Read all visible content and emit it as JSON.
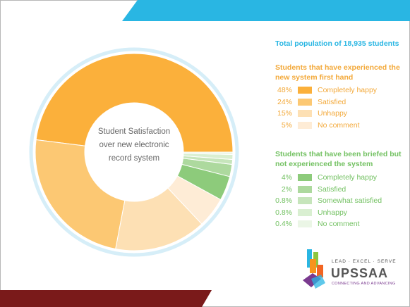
{
  "chart_data": {
    "type": "pie",
    "title": "Student Satisfaction over new electronic record system",
    "center_label_lines": [
      "Student Satisfaction",
      "over new electronic",
      "record system"
    ],
    "total_label": "Total population of 18,935 students",
    "groups": [
      {
        "title": "Students that have experienced the new system first hand",
        "color": "#f3a93a",
        "slices": [
          {
            "label": "Completely happy",
            "pct_text": "48%",
            "value": 48,
            "color": "#fbb03b"
          },
          {
            "label": "Satisfied",
            "pct_text": "24%",
            "value": 24,
            "color": "#fcc873"
          },
          {
            "label": "Unhappy",
            "pct_text": "15%",
            "value": 15,
            "color": "#fde0b4"
          },
          {
            "label": "No comment",
            "pct_text": "5%",
            "value": 5,
            "color": "#feecd6"
          }
        ]
      },
      {
        "title": "Students that have been briefed but not experienced the system",
        "color": "#73c162",
        "slices": [
          {
            "label": "Completely happy",
            "pct_text": "4%",
            "value": 4,
            "color": "#8dcb7b"
          },
          {
            "label": "Satisfied",
            "pct_text": "2%",
            "value": 2,
            "color": "#add99e"
          },
          {
            "label": "Somewhat satisfied",
            "pct_text": "0.8%",
            "value": 0.8,
            "color": "#c6e5bb"
          },
          {
            "label": "Unhappy",
            "pct_text": "0.8%",
            "value": 0.8,
            "color": "#d9efd1"
          },
          {
            "label": "No comment",
            "pct_text": "0.4%",
            "value": 0.4,
            "color": "#ebf6e6"
          }
        ]
      }
    ],
    "ring_color": "#d6eef8"
  },
  "decor": {
    "top_band_color": "#29b6e3",
    "bottom_band_color": "#7a1a1a"
  },
  "logo": {
    "tagline": "LEAD · EXCEL · SERVE",
    "name": "UPSSAA",
    "subtitle": "CONNECTING AND ADVANCING"
  }
}
